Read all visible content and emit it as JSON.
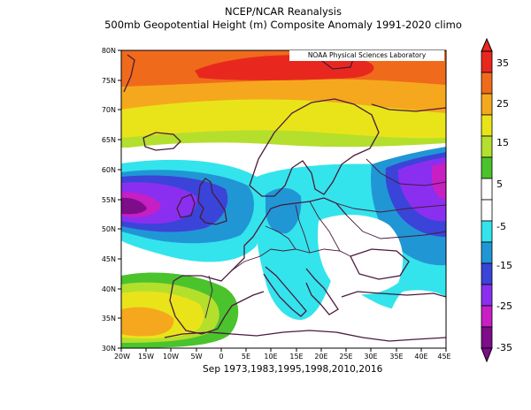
{
  "titles": {
    "line1": "NCEP/NCAR Reanalysis",
    "line2": "500mb Geopotential Height (m) Composite Anomaly 1991-2020 climo",
    "badge": "NOAA Physical Sciences Laboratory",
    "footer": "Sep 1973,1983,1995,1998,2010,2016"
  },
  "axes": {
    "lat_labels": [
      "80N",
      "75N",
      "70N",
      "65N",
      "60N",
      "55N",
      "50N",
      "45N",
      "40N",
      "35N",
      "30N"
    ],
    "lon_labels": [
      "20W",
      "15W",
      "10W",
      "5W",
      "0",
      "5E",
      "10E",
      "15E",
      "20E",
      "25E",
      "30E",
      "35E",
      "40E",
      "45E"
    ]
  },
  "colorbar": {
    "labels": [
      "35",
      "25",
      "15",
      "5",
      "-5",
      "-15",
      "-25",
      "-35"
    ],
    "colors": [
      "#e8281e",
      "#f06a1c",
      "#f5a81d",
      "#e9e419",
      "#b4df2d",
      "#4ac32c",
      "#ffffff",
      "#ffffff",
      "#33e4ec",
      "#2196d5",
      "#3a44d8",
      "#8a2ff0",
      "#c71fc4",
      "#7d0d89"
    ]
  }
}
